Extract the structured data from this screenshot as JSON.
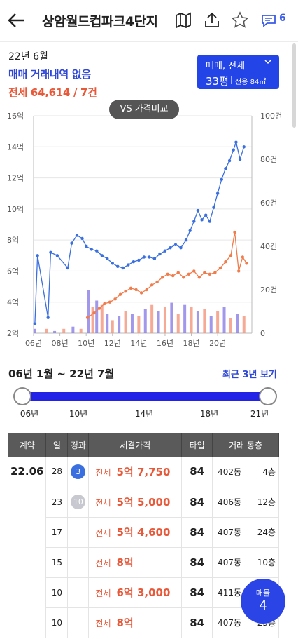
{
  "header": {
    "back_icon": "back-arrow-icon",
    "title": "상암월드컵파크4단지",
    "comment_count": "6",
    "icons": [
      "map-icon",
      "share-icon",
      "star-icon",
      "comment-icon"
    ]
  },
  "summary": {
    "date": "22년 6월",
    "sale_status": "매매 거래내역 없음",
    "jeonse_status": "전세 64,614 / 7건"
  },
  "selector": {
    "type": "매매, 전세",
    "size": "33평",
    "area": "전용 84㎡"
  },
  "vs_button": "VS 가격비교",
  "chart_data": {
    "type": "line",
    "y_left_ticks": [
      "16억",
      "14억",
      "12억",
      "10억",
      "8억",
      "6억",
      "4억",
      "2억"
    ],
    "y_left_range": [
      2,
      16
    ],
    "y_right_ticks": [
      "100건",
      "80건",
      "60건",
      "40건",
      "20건",
      "0"
    ],
    "y_right_range": [
      0,
      100
    ],
    "x_ticks": [
      "06년",
      "08년",
      "10년",
      "12년",
      "14년",
      "16년",
      "18년",
      "20년"
    ],
    "x_range": [
      2006,
      2022.6
    ],
    "series": [
      {
        "color": "#3a6fe0",
        "points": [
          [
            2006.1,
            2.6
          ],
          [
            2006.3,
            7.0
          ],
          [
            2007.1,
            3.0
          ],
          [
            2007.3,
            7.2
          ],
          [
            2007.8,
            7.0
          ],
          [
            2008.6,
            6.2
          ],
          [
            2008.9,
            7.8
          ],
          [
            2009.3,
            8.3
          ],
          [
            2009.7,
            8.1
          ],
          [
            2010.0,
            7.6
          ],
          [
            2010.4,
            7.4
          ],
          [
            2010.8,
            7.3
          ],
          [
            2011.2,
            7.0
          ],
          [
            2011.6,
            6.8
          ],
          [
            2012.0,
            6.5
          ],
          [
            2012.4,
            6.3
          ],
          [
            2012.8,
            6.2
          ],
          [
            2013.2,
            6.4
          ],
          [
            2013.6,
            6.6
          ],
          [
            2014.0,
            6.7
          ],
          [
            2014.4,
            6.9
          ],
          [
            2014.8,
            6.9
          ],
          [
            2015.2,
            6.8
          ],
          [
            2015.6,
            7.1
          ],
          [
            2016.0,
            7.3
          ],
          [
            2016.4,
            7.5
          ],
          [
            2016.8,
            7.7
          ],
          [
            2017.2,
            7.5
          ],
          [
            2017.6,
            8.0
          ],
          [
            2017.9,
            8.6
          ],
          [
            2018.2,
            9.2
          ],
          [
            2018.5,
            9.9
          ],
          [
            2018.8,
            9.3
          ],
          [
            2019.1,
            9.6
          ],
          [
            2019.4,
            9.2
          ],
          [
            2019.7,
            10.1
          ],
          [
            2020.0,
            11.0
          ],
          [
            2020.3,
            11.9
          ],
          [
            2020.6,
            12.6
          ],
          [
            2020.9,
            13.1
          ],
          [
            2021.2,
            13.8
          ],
          [
            2021.4,
            14.3
          ],
          [
            2021.7,
            13.2
          ],
          [
            2022.0,
            14.0
          ]
        ]
      },
      {
        "color": "#f07c4c",
        "points": [
          [
            2010.1,
            3.0
          ],
          [
            2010.6,
            3.3
          ],
          [
            2011.0,
            3.6
          ],
          [
            2011.4,
            3.9
          ],
          [
            2011.8,
            4.0
          ],
          [
            2012.2,
            4.2
          ],
          [
            2012.6,
            4.5
          ],
          [
            2013.0,
            4.7
          ],
          [
            2013.4,
            4.9
          ],
          [
            2013.8,
            4.8
          ],
          [
            2014.2,
            4.6
          ],
          [
            2014.6,
            4.8
          ],
          [
            2015.0,
            5.1
          ],
          [
            2015.4,
            5.3
          ],
          [
            2015.8,
            5.6
          ],
          [
            2016.2,
            5.8
          ],
          [
            2016.6,
            5.7
          ],
          [
            2017.0,
            5.9
          ],
          [
            2017.4,
            5.6
          ],
          [
            2017.8,
            5.8
          ],
          [
            2018.2,
            6.0
          ],
          [
            2018.6,
            5.6
          ],
          [
            2019.0,
            5.9
          ],
          [
            2019.4,
            5.8
          ],
          [
            2019.8,
            5.9
          ],
          [
            2020.2,
            6.2
          ],
          [
            2020.6,
            6.6
          ],
          [
            2021.0,
            7.0
          ],
          [
            2021.3,
            8.5
          ],
          [
            2021.6,
            6.0
          ],
          [
            2021.9,
            6.9
          ],
          [
            2022.2,
            6.5
          ]
        ]
      }
    ],
    "volumes": [
      [
        2006.1,
        2
      ],
      [
        2007.0,
        2
      ],
      [
        2007.6,
        1
      ],
      [
        2008.3,
        2
      ],
      [
        2009.0,
        3
      ],
      [
        2009.6,
        2
      ],
      [
        2010.2,
        20
      ],
      [
        2010.5,
        12
      ],
      [
        2010.8,
        15
      ],
      [
        2011.2,
        13
      ],
      [
        2011.6,
        9
      ],
      [
        2012.0,
        6
      ],
      [
        2012.5,
        8
      ],
      [
        2013.0,
        10
      ],
      [
        2013.5,
        9
      ],
      [
        2014.0,
        8
      ],
      [
        2014.5,
        11
      ],
      [
        2015.0,
        13
      ],
      [
        2015.5,
        10
      ],
      [
        2016.0,
        12
      ],
      [
        2016.5,
        14
      ],
      [
        2017.0,
        9
      ],
      [
        2017.5,
        13
      ],
      [
        2018.0,
        12
      ],
      [
        2018.5,
        10
      ],
      [
        2019.0,
        11
      ],
      [
        2019.5,
        8
      ],
      [
        2020.0,
        10
      ],
      [
        2020.5,
        12
      ],
      [
        2021.0,
        7
      ],
      [
        2021.5,
        9
      ],
      [
        2022.0,
        8
      ]
    ]
  },
  "period": {
    "range": "06년 1월 ~ 22년 7월",
    "recent_link": "최근 3년 보기",
    "ticks": [
      "06년",
      "10년",
      "14년",
      "18년",
      "21년"
    ]
  },
  "table": {
    "headers": [
      "계약",
      "일",
      "경과",
      "체결가격",
      "타입",
      "거래 동층"
    ],
    "month": "22.06",
    "rows": [
      {
        "day": "28",
        "elapsed": "3",
        "badge_color": "#3a6fe0",
        "kind": "전세",
        "price": "5억 7,750",
        "type": "84",
        "dong": "402동",
        "floor": "4층"
      },
      {
        "day": "23",
        "elapsed": "10",
        "badge_color": "#c8c8d0",
        "kind": "전세",
        "price": "5억 5,000",
        "type": "84",
        "dong": "406동",
        "floor": "12층"
      },
      {
        "day": "17",
        "elapsed": "",
        "badge_color": "",
        "kind": "전세",
        "price": "5억 4,600",
        "type": "84",
        "dong": "407동",
        "floor": "24층"
      },
      {
        "day": "15",
        "elapsed": "",
        "badge_color": "",
        "kind": "전세",
        "price": "8억",
        "type": "84",
        "dong": "407동",
        "floor": "10층"
      },
      {
        "day": "10",
        "elapsed": "",
        "badge_color": "",
        "kind": "전세",
        "price": "6억 3,000",
        "type": "84",
        "dong": "411동",
        "floor": ""
      },
      {
        "day": "10",
        "elapsed": "",
        "badge_color": "",
        "kind": "전세",
        "price": "8억",
        "type": "84",
        "dong": "407동",
        "floor": "23층"
      }
    ]
  },
  "fab": {
    "label": "매물",
    "count": "4"
  }
}
